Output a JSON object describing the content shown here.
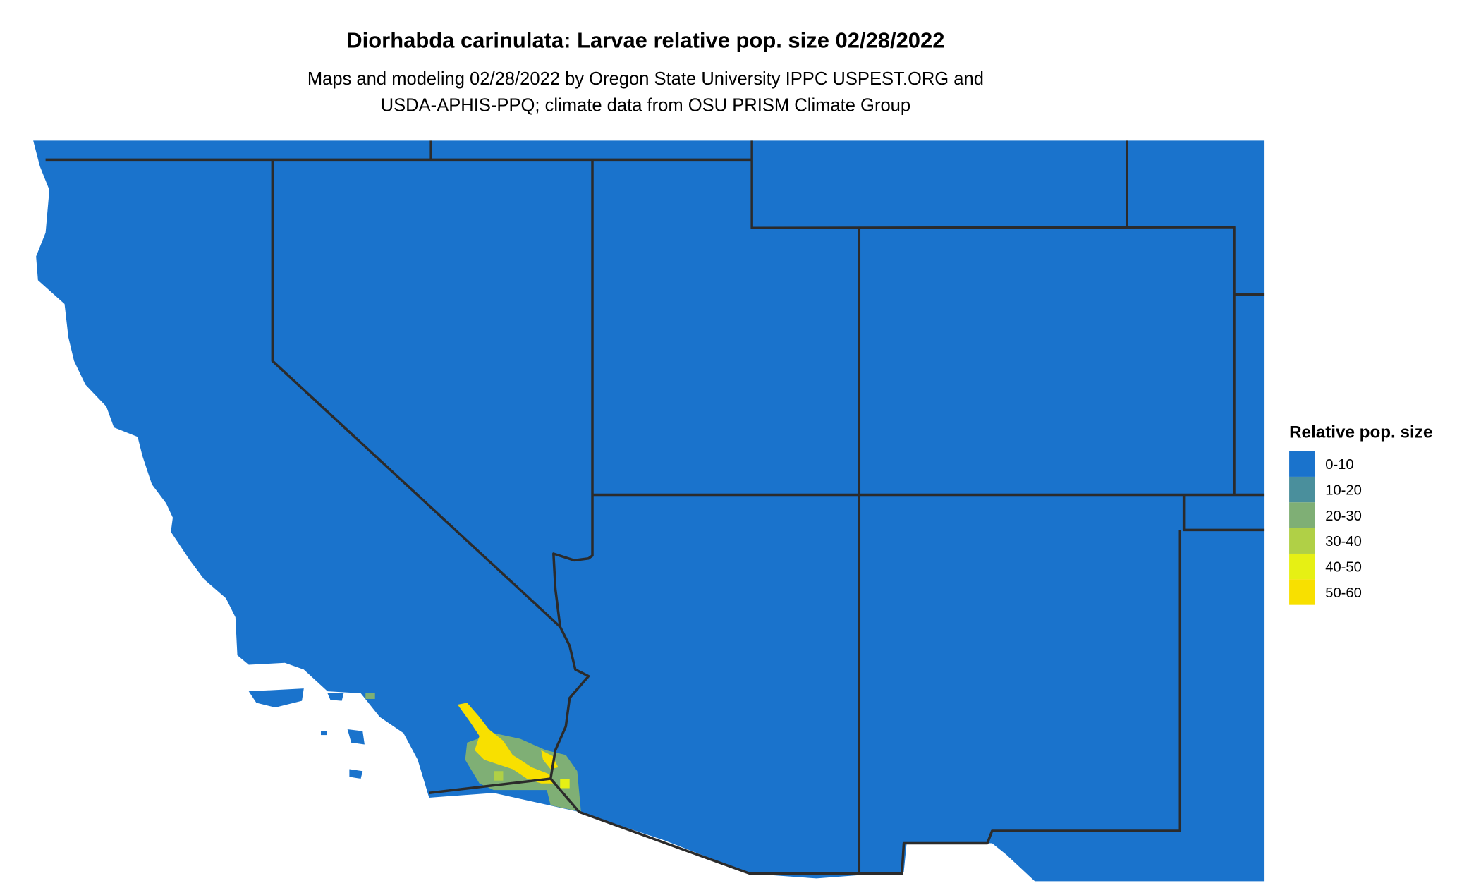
{
  "title": "Diorhabda carinulata: Larvae relative pop. size 02/28/2022",
  "subtitle_line1": "Maps and modeling 02/28/2022 by Oregon State University IPPC USPEST.ORG and",
  "subtitle_line2": "USDA-APHIS-PPQ; climate data from OSU PRISM Climate Group",
  "legend": {
    "title": "Relative pop. size",
    "items": [
      {
        "label": "0-10",
        "color": "#1A73CC"
      },
      {
        "label": "10-20",
        "color": "#4A8F9C"
      },
      {
        "label": "20-30",
        "color": "#7FAF75"
      },
      {
        "label": "30-40",
        "color": "#B0D046"
      },
      {
        "label": "40-50",
        "color": "#E6F014"
      },
      {
        "label": "50-60",
        "color": "#F8E000"
      }
    ]
  },
  "colors": {
    "border": "#2b2b2b",
    "background": "#ffffff"
  }
}
